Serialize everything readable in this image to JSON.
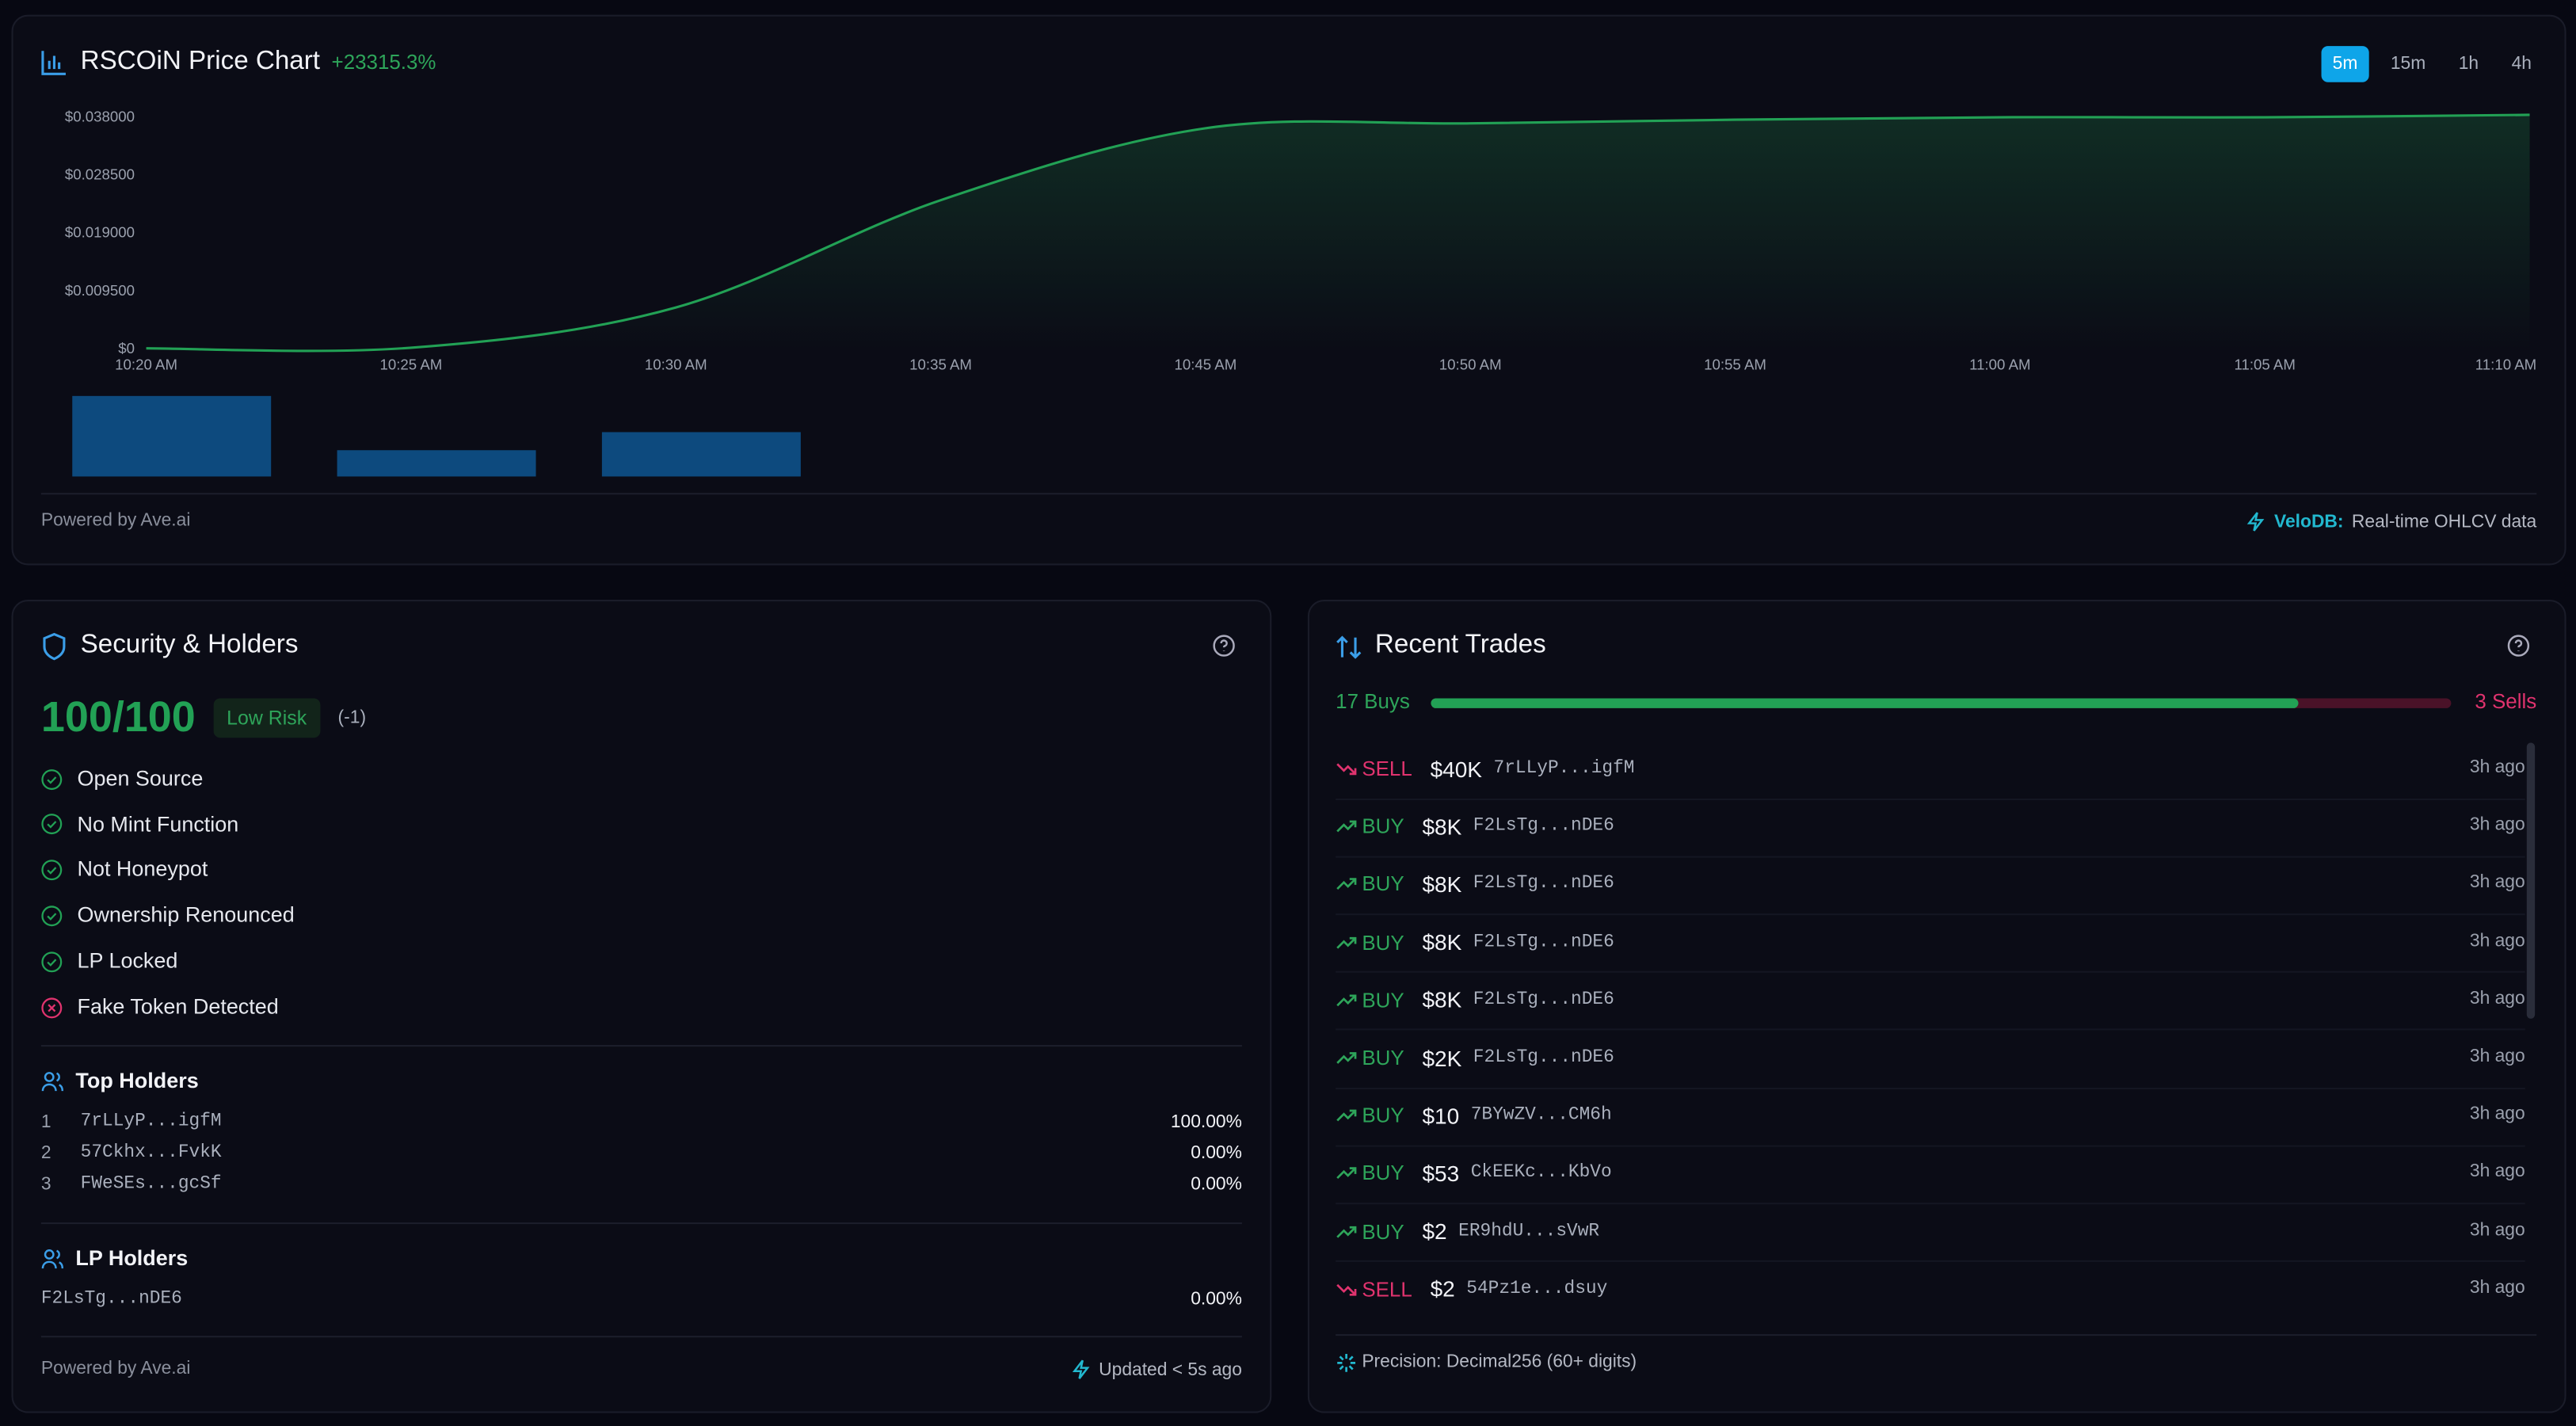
{
  "header": {
    "title": "RSCOiN Price Chart",
    "change": "+23315.3%",
    "intervals": [
      "5m",
      "15m",
      "1h",
      "4h"
    ],
    "active_interval": 0
  },
  "chart_data": {
    "type": "line",
    "categories": [
      "10:20 AM",
      "10:25 AM",
      "10:30 AM",
      "10:35 AM",
      "10:45 AM",
      "10:50 AM",
      "10:55 AM",
      "11:00 AM",
      "11:05 AM",
      "11:10 AM"
    ],
    "values": [
      0,
      0.0001,
      0.0067,
      0.0243,
      0.0361,
      0.0369,
      0.0375,
      0.0379,
      0.0379,
      0.0383
    ],
    "color": "#22a155",
    "ylim": [
      0,
      0.0385
    ],
    "yticks": [
      {
        "value": 0,
        "label": "$0"
      },
      {
        "value": 0.0095,
        "label": "$0.009500"
      },
      {
        "value": 0.019,
        "label": "$0.019000"
      },
      {
        "value": 0.0285,
        "label": "$0.028500"
      },
      {
        "value": 0.038,
        "label": "$0.038000"
      }
    ],
    "volume": [
      49,
      16,
      27,
      null,
      null,
      null,
      null,
      null,
      null,
      null
    ],
    "volume_color": "#0d4a7e"
  },
  "chart_footer": {
    "credit": "Powered by Ave.ai",
    "source_name": "VeloDB:",
    "source_text": "Real-time OHLCV data"
  },
  "security": {
    "title": "Security & Holders",
    "score": "100/100",
    "risk": "Low Risk",
    "risk_delta": "(-1)",
    "checks": [
      {
        "label": "Open Source",
        "passed": true
      },
      {
        "label": "No Mint Function",
        "passed": true
      },
      {
        "label": "Not Honeypot",
        "passed": true
      },
      {
        "label": "Ownership Renounced",
        "passed": true
      },
      {
        "label": "LP Locked",
        "passed": true
      },
      {
        "label": "Fake Token Detected",
        "passed": false
      }
    ],
    "top_holders_title": "Top Holders",
    "top_holders": [
      {
        "rank": "1",
        "address": "7rLLyP...igfM",
        "share": "100.00%"
      },
      {
        "rank": "2",
        "address": "57Ckhx...FvkK",
        "share": "0.00%"
      },
      {
        "rank": "3",
        "address": "FWeSEs...gcSf",
        "share": "0.00%"
      }
    ],
    "lp_holders_title": "LP Holders",
    "lp_holders": [
      {
        "address": "F2LsTg...nDE6",
        "share": "0.00%"
      }
    ],
    "credit": "Powered by Ave.ai",
    "updated": "Updated < 5s ago"
  },
  "trades": {
    "title": "Recent Trades",
    "buys_label": "17 Buys",
    "sells_label": "3 Sells",
    "buys": 17,
    "sells": 3,
    "rows": [
      {
        "side": "SELL",
        "amount": "$40K",
        "address": "7rLLyP...igfM",
        "time": "3h ago"
      },
      {
        "side": "BUY",
        "amount": "$8K",
        "address": "F2LsTg...nDE6",
        "time": "3h ago"
      },
      {
        "side": "BUY",
        "amount": "$8K",
        "address": "F2LsTg...nDE6",
        "time": "3h ago"
      },
      {
        "side": "BUY",
        "amount": "$8K",
        "address": "F2LsTg...nDE6",
        "time": "3h ago"
      },
      {
        "side": "BUY",
        "amount": "$8K",
        "address": "F2LsTg...nDE6",
        "time": "3h ago"
      },
      {
        "side": "BUY",
        "amount": "$2K",
        "address": "F2LsTg...nDE6",
        "time": "3h ago"
      },
      {
        "side": "BUY",
        "amount": "$10",
        "address": "7BYwZV...CM6h",
        "time": "3h ago"
      },
      {
        "side": "BUY",
        "amount": "$53",
        "address": "CkEEKc...KbVo",
        "time": "3h ago"
      },
      {
        "side": "BUY",
        "amount": "$2",
        "address": "ER9hdU...sVwR",
        "time": "3h ago"
      },
      {
        "side": "SELL",
        "amount": "$2",
        "address": "54Pz1e...dsuy",
        "time": "3h ago"
      }
    ],
    "precision": "Precision: Decimal256 (60+ digits)"
  }
}
